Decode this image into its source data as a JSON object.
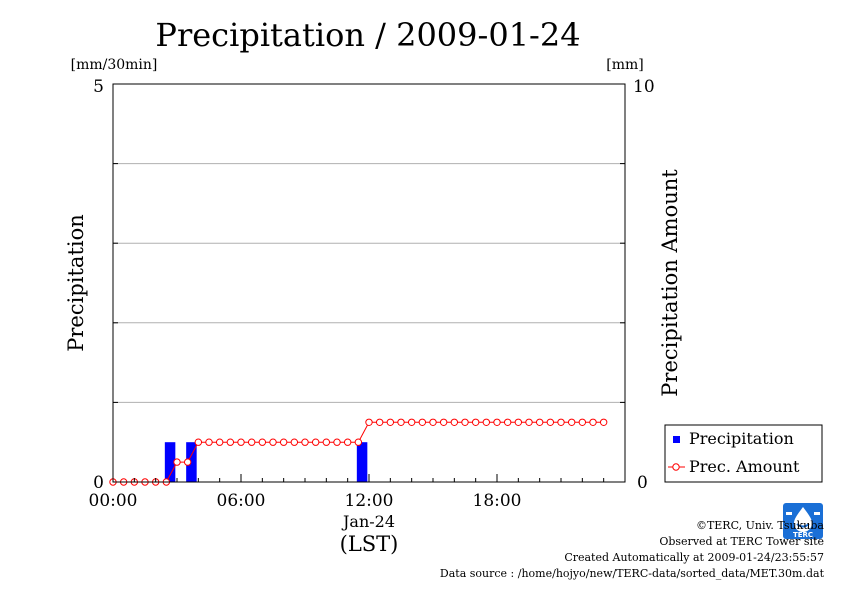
{
  "chart_data": {
    "type": "bar",
    "title": "Precipitation / 2009-01-24",
    "xlabel": "(LST)",
    "ylabel": "Precipitation",
    "y2label": "Precipitation Amount",
    "y_unit": "[mm/30min]",
    "y2_unit": "[mm]",
    "ylim": [
      0,
      5
    ],
    "y2lim": [
      0,
      10
    ],
    "y_ticks": [
      "0",
      "5"
    ],
    "y2_ticks": [
      "0",
      "10"
    ],
    "x_ticks": [
      "00:00",
      "06:00",
      "12:00",
      "18:00"
    ],
    "x_date_label": "Jan-24",
    "grid": true,
    "legend_position": "bottom-right",
    "series": [
      {
        "name": "Precipitation",
        "type": "bar",
        "axis": "left",
        "color": "#0000ff",
        "times": [
          "02:30",
          "03:30",
          "11:30"
        ],
        "values": [
          0.5,
          0.5,
          0.5
        ]
      },
      {
        "name": "Prec. Amount",
        "type": "line",
        "axis": "right",
        "color": "#ff0000",
        "times": [
          "00:00",
          "00:30",
          "01:00",
          "01:30",
          "02:00",
          "02:30",
          "03:00",
          "03:30",
          "04:00",
          "04:30",
          "05:00",
          "05:30",
          "06:00",
          "06:30",
          "07:00",
          "07:30",
          "08:00",
          "08:30",
          "09:00",
          "09:30",
          "10:00",
          "10:30",
          "11:00",
          "11:30",
          "12:00",
          "12:30",
          "13:00",
          "13:30",
          "14:00",
          "14:30",
          "15:00",
          "15:30",
          "16:00",
          "16:30",
          "17:00",
          "17:30",
          "18:00",
          "18:30",
          "19:00",
          "19:30",
          "20:00",
          "20:30",
          "21:00",
          "21:30",
          "22:00",
          "22:30",
          "23:00"
        ],
        "values": [
          0,
          0,
          0,
          0,
          0,
          0,
          0.5,
          0.5,
          1,
          1,
          1,
          1,
          1,
          1,
          1,
          1,
          1,
          1,
          1,
          1,
          1,
          1,
          1,
          1,
          1.5,
          1.5,
          1.5,
          1.5,
          1.5,
          1.5,
          1.5,
          1.5,
          1.5,
          1.5,
          1.5,
          1.5,
          1.5,
          1.5,
          1.5,
          1.5,
          1.5,
          1.5,
          1.5,
          1.5,
          1.5,
          1.5,
          1.5
        ]
      }
    ]
  },
  "footer": {
    "copyright": "©TERC, Univ. Tsukuba",
    "observed": "Observed at TERC Tower site",
    "created": "Created Automatically at 2009-01-24/23:55:57",
    "source": "Data source : /home/hojyo/new/TERC-data/sorted_data/MET.30m.dat"
  },
  "logo": {
    "text": "TERC",
    "color": "#1a6fd6"
  }
}
